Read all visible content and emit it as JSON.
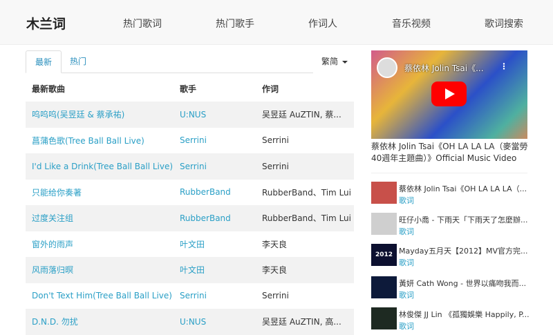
{
  "header": {
    "logo": "木兰词",
    "nav": [
      "热门歌词",
      "热门歌手",
      "作词人",
      "音乐视频",
      "歌词搜索"
    ]
  },
  "tabs": {
    "latest": "最新",
    "hot": "热门",
    "lang": "繁简"
  },
  "table": {
    "headers": [
      "最新歌曲",
      "歌手",
      "作词"
    ],
    "rows": [
      [
        "呜呜呜(吴昱廷 & 蔡承祐)",
        "U:NUS",
        "吴昱廷 AuZTIN, 蔡..."
      ],
      [
        "菖蒲色歌(Tree Ball Ball Live)",
        "Serrini",
        "Serrini"
      ],
      [
        "I'd Like a Drink(Tree Ball Ball Live)",
        "Serrini",
        "Serrini"
      ],
      [
        "只能给你奏著",
        "RubberBand",
        "RubberBand、Tim Lui"
      ],
      [
        "过度关注组",
        "RubberBand",
        "RubberBand、Tim Lui"
      ],
      [
        "窗外的雨声",
        "叶文田",
        "李天良"
      ],
      [
        "风雨落归暝",
        "叶文田",
        "李天良"
      ],
      [
        "Don't Text Him(Tree Ball Ball Live)",
        "Serrini",
        "Serrini"
      ],
      [
        "D.N.D. 勿扰",
        "U:NUS",
        "吴昱廷 AuZTIN, 高..."
      ]
    ]
  },
  "video": {
    "overlay_title": "蔡依林 Jolin Tsai《...",
    "caption": "蔡依林 Jolin Tsai《OH LA LA LA（麥當勞40週年主題曲）》Official Music Video"
  },
  "list": [
    {
      "title": "蔡依林 Jolin Tsai《OH LA LA LA（...",
      "link": "歌词",
      "thumb": "#c8504a"
    },
    {
      "title": "旺仔小喬 - 下雨天「下雨天了怎麼辦...",
      "link": "歌词",
      "thumb": "#cfcfcf"
    },
    {
      "title": "Mayday五月天【2012】MV官方完...",
      "link": "歌词",
      "thumb": "#0c1030",
      "thumb_text": "2012"
    },
    {
      "title": "黃妍 Cath Wong - 世界以痛吻我而...",
      "link": "歌词",
      "thumb": "#0d1a3a"
    },
    {
      "title": "林俊傑 JJ Lin 《孤獨娛樂 Happily, P...",
      "link": "歌词",
      "thumb": "#1e2a22"
    }
  ]
}
